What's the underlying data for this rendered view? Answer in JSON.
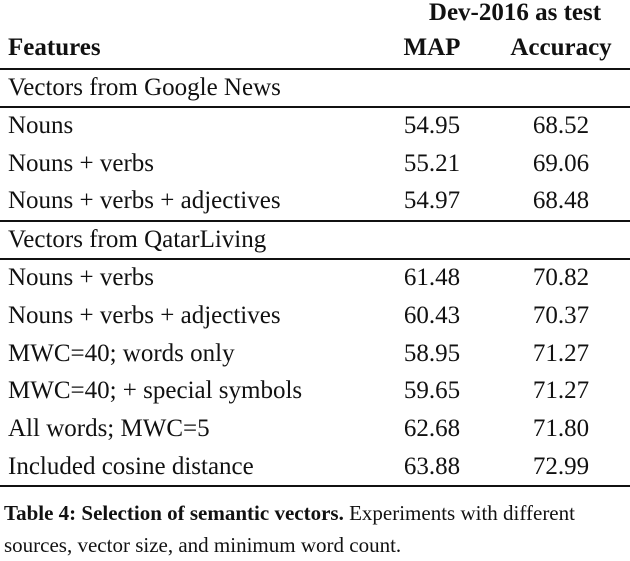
{
  "header": {
    "group": "Dev-2016 as test",
    "columns": [
      "Features",
      "MAP",
      "Accuracy"
    ]
  },
  "sections": [
    {
      "title": "Vectors from Google News",
      "rows": [
        [
          "Nouns",
          "54.95",
          "68.52"
        ],
        [
          "Nouns + verbs",
          "55.21",
          "69.06"
        ],
        [
          "Nouns + verbs + adjectives",
          "54.97",
          "68.48"
        ]
      ]
    },
    {
      "title": "Vectors from QatarLiving",
      "rows": [
        [
          "Nouns + verbs",
          "61.48",
          "70.82"
        ],
        [
          "Nouns + verbs + adjectives",
          "60.43",
          "70.37"
        ],
        [
          "MWC=40; words only",
          "58.95",
          "71.27"
        ],
        [
          "MWC=40; + special symbols",
          "59.65",
          "71.27"
        ],
        [
          "All words; MWC=5",
          "62.68",
          "71.80"
        ],
        [
          "Included cosine distance",
          "63.88",
          "72.99"
        ]
      ]
    }
  ],
  "caption": {
    "label": "Table 4: Selection of semantic vectors.",
    "text": "Experiments with different sources, vector size, and minimum word count."
  }
}
